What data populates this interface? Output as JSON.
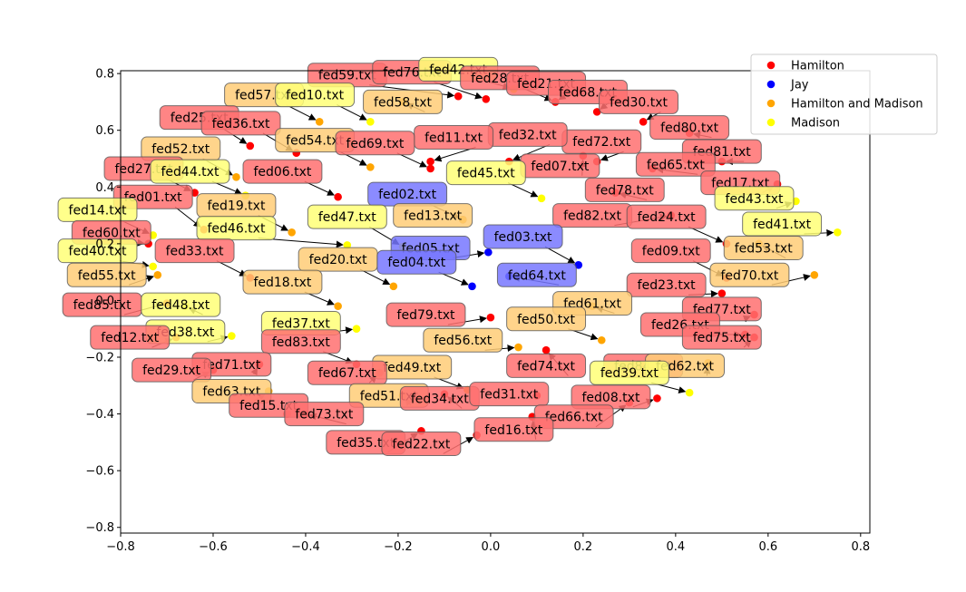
{
  "chart_data": {
    "type": "scatter",
    "title": "",
    "xlabel": "",
    "ylabel": "",
    "xlim": [
      -0.8,
      0.82
    ],
    "ylim": [
      -0.82,
      0.81
    ],
    "xticks": [
      -0.8,
      -0.6,
      -0.4,
      -0.2,
      0.0,
      0.2,
      0.4,
      0.6,
      0.8
    ],
    "yticks": [
      -0.8,
      -0.6,
      -0.4,
      -0.2,
      0.0,
      0.2,
      0.4,
      0.6,
      0.8
    ],
    "xtick_labels": [
      "−0.8",
      "−0.6",
      "−0.4",
      "−0.2",
      "0.0",
      "0.2",
      "0.4",
      "0.6",
      "0.8"
    ],
    "ytick_labels": [
      "−0.8",
      "−0.6",
      "−0.4",
      "−0.2",
      "0.0",
      "0.2",
      "0.4",
      "0.6",
      "0.8"
    ],
    "grid": false,
    "legend_position": "top-right",
    "legend": [
      {
        "name": "Hamilton",
        "color": "#ff0000"
      },
      {
        "name": "Jay",
        "color": "#0000ff"
      },
      {
        "name": "Hamilton and Madison",
        "color": "#ffa500"
      },
      {
        "name": "Madison",
        "color": "#ffff00"
      }
    ],
    "group_colors": {
      "Hamilton": "#ff0000",
      "Jay": "#0000ff",
      "Hamilton and Madison": "#ffa500",
      "Madison": "#ffff00"
    },
    "group_label_box_colors": {
      "Hamilton": "#ff7070",
      "Jay": "#7777ff",
      "Hamilton and Madison": "#ffcc77",
      "Madison": "#ffff77"
    },
    "points": [
      {
        "label": "fed59.txt",
        "group": "Hamilton",
        "x": -0.07,
        "y": 0.72,
        "lx": -0.31,
        "ly": 0.795
      },
      {
        "label": "fed76.txt",
        "group": "Hamilton",
        "x": -0.01,
        "y": 0.71,
        "lx": -0.17,
        "ly": 0.805
      },
      {
        "label": "fed42.txt",
        "group": "Madison",
        "x": 0.05,
        "y": 0.745,
        "lx": -0.07,
        "ly": 0.815
      },
      {
        "label": "fed28.txt",
        "group": "Hamilton",
        "x": 0.14,
        "y": 0.7,
        "lx": 0.02,
        "ly": 0.785
      },
      {
        "label": "fed21.txt",
        "group": "Hamilton",
        "x": 0.14,
        "y": 0.7,
        "lx": 0.12,
        "ly": 0.765
      },
      {
        "label": "fed68.txt",
        "group": "Hamilton",
        "x": 0.23,
        "y": 0.665,
        "lx": 0.21,
        "ly": 0.735
      },
      {
        "label": "fed30.txt",
        "group": "Hamilton",
        "x": 0.33,
        "y": 0.63,
        "lx": 0.32,
        "ly": 0.7
      },
      {
        "label": "fed80.txt",
        "group": "Hamilton",
        "x": 0.43,
        "y": 0.59,
        "lx": 0.43,
        "ly": 0.61
      },
      {
        "label": "fed81.txt",
        "group": "Hamilton",
        "x": 0.5,
        "y": 0.49,
        "lx": 0.5,
        "ly": 0.525
      },
      {
        "label": "fed65.txt",
        "group": "Hamilton",
        "x": 0.35,
        "y": 0.465,
        "lx": 0.4,
        "ly": 0.48
      },
      {
        "label": "fed17.txt",
        "group": "Hamilton",
        "x": 0.62,
        "y": 0.41,
        "lx": 0.54,
        "ly": 0.415
      },
      {
        "label": "fed72.txt",
        "group": "Hamilton",
        "x": 0.23,
        "y": 0.49,
        "lx": 0.24,
        "ly": 0.56
      },
      {
        "label": "fed32.txt",
        "group": "Hamilton",
        "x": 0.04,
        "y": 0.49,
        "lx": 0.08,
        "ly": 0.585
      },
      {
        "label": "fed07.txt",
        "group": "Hamilton",
        "x": 0.2,
        "y": 0.51,
        "lx": 0.15,
        "ly": 0.475
      },
      {
        "label": "fed11.txt",
        "group": "Hamilton",
        "x": -0.13,
        "y": 0.49,
        "lx": -0.08,
        "ly": 0.575
      },
      {
        "label": "fed58.txt",
        "group": "Hamilton and Madison",
        "x": -0.19,
        "y": 0.7,
        "lx": -0.19,
        "ly": 0.7
      },
      {
        "label": "fed57.txt",
        "group": "Hamilton and Madison",
        "x": -0.37,
        "y": 0.63,
        "lx": -0.49,
        "ly": 0.725
      },
      {
        "label": "fed10.txt",
        "group": "Madison",
        "x": -0.26,
        "y": 0.63,
        "lx": -0.38,
        "ly": 0.725
      },
      {
        "label": "fed25.txt",
        "group": "Hamilton",
        "x": -0.52,
        "y": 0.545,
        "lx": -0.63,
        "ly": 0.645
      },
      {
        "label": "fed36.txt",
        "group": "Hamilton",
        "x": -0.42,
        "y": 0.52,
        "lx": -0.54,
        "ly": 0.625
      },
      {
        "label": "fed54.txt",
        "group": "Hamilton and Madison",
        "x": -0.26,
        "y": 0.47,
        "lx": -0.38,
        "ly": 0.565
      },
      {
        "label": "fed69.txt",
        "group": "Hamilton",
        "x": -0.13,
        "y": 0.465,
        "lx": -0.25,
        "ly": 0.555
      },
      {
        "label": "fed52.txt",
        "group": "Hamilton and Madison",
        "x": -0.55,
        "y": 0.435,
        "lx": -0.67,
        "ly": 0.535
      },
      {
        "label": "fed27.txt",
        "group": "Hamilton",
        "x": -0.64,
        "y": 0.38,
        "lx": -0.75,
        "ly": 0.465
      },
      {
        "label": "fed44.txt",
        "group": "Madison",
        "x": -0.53,
        "y": 0.37,
        "lx": -0.65,
        "ly": 0.455
      },
      {
        "label": "fed06.txt",
        "group": "Hamilton",
        "x": -0.33,
        "y": 0.365,
        "lx": -0.45,
        "ly": 0.455
      },
      {
        "label": "fed45.txt",
        "group": "Madison",
        "x": 0.11,
        "y": 0.36,
        "lx": -0.01,
        "ly": 0.45
      },
      {
        "label": "fed78.txt",
        "group": "Hamilton",
        "x": 0.27,
        "y": 0.38,
        "lx": 0.29,
        "ly": 0.39
      },
      {
        "label": "fed43.txt",
        "group": "Madison",
        "x": 0.66,
        "y": 0.35,
        "lx": 0.57,
        "ly": 0.36
      },
      {
        "label": "fed01.txt",
        "group": "Hamilton",
        "x": -0.62,
        "y": 0.25,
        "lx": -0.73,
        "ly": 0.365
      },
      {
        "label": "fed19.txt",
        "group": "Hamilton and Madison",
        "x": -0.43,
        "y": 0.24,
        "lx": -0.55,
        "ly": 0.335
      },
      {
        "label": "fed02.txt",
        "group": "Jay",
        "x": -0.06,
        "y": 0.285,
        "lx": -0.18,
        "ly": 0.375
      },
      {
        "label": "fed14.txt",
        "group": "Madison",
        "x": -0.73,
        "y": 0.23,
        "lx": -0.85,
        "ly": 0.32
      },
      {
        "label": "fed13.txt",
        "group": "Hamilton and Madison",
        "x": -0.06,
        "y": 0.285,
        "lx": -0.125,
        "ly": 0.3
      },
      {
        "label": "fed47.txt",
        "group": "Madison",
        "x": -0.19,
        "y": 0.19,
        "lx": -0.31,
        "ly": 0.295
      },
      {
        "label": "fed82.txt",
        "group": "Hamilton",
        "x": 0.39,
        "y": 0.3,
        "lx": 0.22,
        "ly": 0.3
      },
      {
        "label": "fed24.txt",
        "group": "Hamilton",
        "x": 0.51,
        "y": 0.2,
        "lx": 0.38,
        "ly": 0.295
      },
      {
        "label": "fed41.txt",
        "group": "Madison",
        "x": 0.75,
        "y": 0.24,
        "lx": 0.63,
        "ly": 0.27
      },
      {
        "label": "fed60.txt",
        "group": "Hamilton",
        "x": -0.74,
        "y": 0.2,
        "lx": -0.82,
        "ly": 0.24
      },
      {
        "label": "fed46.txt",
        "group": "Madison",
        "x": -0.31,
        "y": 0.195,
        "lx": -0.55,
        "ly": 0.255
      },
      {
        "label": "fed03.txt",
        "group": "Jay",
        "x": 0.19,
        "y": 0.125,
        "lx": 0.07,
        "ly": 0.225
      },
      {
        "label": "fed05.txt",
        "group": "Jay",
        "x": -0.005,
        "y": 0.17,
        "lx": -0.13,
        "ly": 0.185
      },
      {
        "label": "fed53.txt",
        "group": "Hamilton and Madison",
        "x": 0.58,
        "y": 0.2,
        "lx": 0.59,
        "ly": 0.185
      },
      {
        "label": "fed40.txt",
        "group": "Madison",
        "x": -0.73,
        "y": 0.12,
        "lx": -0.85,
        "ly": 0.175
      },
      {
        "label": "fed33.txt",
        "group": "Hamilton",
        "x": -0.52,
        "y": 0.08,
        "lx": -0.64,
        "ly": 0.175
      },
      {
        "label": "fed09.txt",
        "group": "Hamilton",
        "x": 0.51,
        "y": 0.08,
        "lx": 0.39,
        "ly": 0.175
      },
      {
        "label": "fed20.txt",
        "group": "Hamilton and Madison",
        "x": -0.21,
        "y": 0.05,
        "lx": -0.33,
        "ly": 0.145
      },
      {
        "label": "fed04.txt",
        "group": "Jay",
        "x": -0.04,
        "y": 0.05,
        "lx": -0.16,
        "ly": 0.135
      },
      {
        "label": "fed64.txt",
        "group": "Jay",
        "x": 0.04,
        "y": 0.085,
        "lx": 0.1,
        "ly": 0.09
      },
      {
        "label": "fed70.txt",
        "group": "Hamilton and Madison",
        "x": 0.7,
        "y": 0.09,
        "lx": 0.56,
        "ly": 0.09
      },
      {
        "label": "fed55.txt",
        "group": "Hamilton and Madison",
        "x": -0.72,
        "y": 0.09,
        "lx": -0.83,
        "ly": 0.09
      },
      {
        "label": "fed18.txt",
        "group": "Hamilton and Madison",
        "x": -0.33,
        "y": -0.02,
        "lx": -0.45,
        "ly": 0.065
      },
      {
        "label": "fed23.txt",
        "group": "Hamilton",
        "x": 0.5,
        "y": 0.025,
        "lx": 0.38,
        "ly": 0.055
      },
      {
        "label": "fed85.txt",
        "group": "Hamilton",
        "x": -0.7,
        "y": -0.01,
        "lx": -0.84,
        "ly": -0.015
      },
      {
        "label": "fed48.txt",
        "group": "Madison",
        "x": -0.66,
        "y": -0.02,
        "lx": -0.67,
        "ly": -0.015
      },
      {
        "label": "fed61.txt",
        "group": "Hamilton and Madison",
        "x": 0.22,
        "y": -0.02,
        "lx": 0.22,
        "ly": -0.01
      },
      {
        "label": "fed77.txt",
        "group": "Hamilton",
        "x": 0.57,
        "y": -0.05,
        "lx": 0.5,
        "ly": -0.03
      },
      {
        "label": "fed79.txt",
        "group": "Hamilton",
        "x": 0.0,
        "y": -0.06,
        "lx": -0.14,
        "ly": -0.05
      },
      {
        "label": "fed50.txt",
        "group": "Hamilton and Madison",
        "x": 0.24,
        "y": -0.14,
        "lx": 0.12,
        "ly": -0.065
      },
      {
        "label": "fed37.txt",
        "group": "Madison",
        "x": -0.29,
        "y": -0.1,
        "lx": -0.41,
        "ly": -0.08
      },
      {
        "label": "fed26.txt",
        "group": "Hamilton",
        "x": 0.55,
        "y": -0.12,
        "lx": 0.41,
        "ly": -0.085
      },
      {
        "label": "fed38.txt",
        "group": "Madison",
        "x": -0.56,
        "y": -0.125,
        "lx": -0.66,
        "ly": -0.11
      },
      {
        "label": "fed12.txt",
        "group": "Hamilton",
        "x": -0.68,
        "y": -0.13,
        "lx": -0.78,
        "ly": -0.13
      },
      {
        "label": "fed75.txt",
        "group": "Hamilton",
        "x": 0.57,
        "y": -0.13,
        "lx": 0.5,
        "ly": -0.13
      },
      {
        "label": "fed56.txt",
        "group": "Hamilton and Madison",
        "x": 0.06,
        "y": -0.165,
        "lx": -0.06,
        "ly": -0.14
      },
      {
        "label": "fed83.txt",
        "group": "Hamilton",
        "x": -0.29,
        "y": -0.225,
        "lx": -0.41,
        "ly": -0.145
      },
      {
        "label": "fed74.txt",
        "group": "Hamilton",
        "x": 0.12,
        "y": -0.175,
        "lx": 0.12,
        "ly": -0.23
      },
      {
        "label": "fed84.txt",
        "group": "Hamilton",
        "x": 0.33,
        "y": -0.23,
        "lx": 0.33,
        "ly": -0.23
      },
      {
        "label": "fed62.txt",
        "group": "Hamilton and Madison",
        "x": 0.47,
        "y": -0.22,
        "lx": 0.42,
        "ly": -0.23
      },
      {
        "label": "fed71.txt",
        "group": "Hamilton",
        "x": -0.5,
        "y": -0.225,
        "lx": -0.56,
        "ly": -0.225
      },
      {
        "label": "fed29.txt",
        "group": "Hamilton",
        "x": -0.6,
        "y": -0.245,
        "lx": -0.69,
        "ly": -0.245
      },
      {
        "label": "fed49.txt",
        "group": "Hamilton and Madison",
        "x": -0.05,
        "y": -0.315,
        "lx": -0.17,
        "ly": -0.235
      },
      {
        "label": "fed67.txt",
        "group": "Hamilton",
        "x": -0.24,
        "y": -0.255,
        "lx": -0.31,
        "ly": -0.255
      },
      {
        "label": "fed39.txt",
        "group": "Madison",
        "x": 0.43,
        "y": -0.325,
        "lx": 0.3,
        "ly": -0.255
      },
      {
        "label": "fed63.txt",
        "group": "Hamilton and Madison",
        "x": -0.48,
        "y": -0.32,
        "lx": -0.56,
        "ly": -0.32
      },
      {
        "label": "fed51.txt",
        "group": "Hamilton and Madison",
        "x": -0.19,
        "y": -0.335,
        "lx": -0.22,
        "ly": -0.335
      },
      {
        "label": "fed34.txt",
        "group": "Hamilton",
        "x": -0.1,
        "y": -0.33,
        "lx": -0.11,
        "ly": -0.345
      },
      {
        "label": "fed31.txt",
        "group": "Hamilton",
        "x": 0.1,
        "y": -0.335,
        "lx": 0.04,
        "ly": -0.33
      },
      {
        "label": "fed08.txt",
        "group": "Hamilton",
        "x": 0.36,
        "y": -0.345,
        "lx": 0.26,
        "ly": -0.34
      },
      {
        "label": "fed15.txt",
        "group": "Hamilton",
        "x": -0.44,
        "y": -0.4,
        "lx": -0.48,
        "ly": -0.37
      },
      {
        "label": "fed73.txt",
        "group": "Hamilton",
        "x": -0.4,
        "y": -0.4,
        "lx": -0.36,
        "ly": -0.4
      },
      {
        "label": "fed66.txt",
        "group": "Hamilton",
        "x": 0.3,
        "y": -0.36,
        "lx": 0.18,
        "ly": -0.41
      },
      {
        "label": "fed16.txt",
        "group": "Hamilton",
        "x": 0.09,
        "y": -0.41,
        "lx": 0.05,
        "ly": -0.455
      },
      {
        "label": "fed35.txt",
        "group": "Hamilton",
        "x": -0.15,
        "y": -0.46,
        "lx": -0.27,
        "ly": -0.5
      },
      {
        "label": "fed22.txt",
        "group": "Hamilton",
        "x": -0.03,
        "y": -0.475,
        "lx": -0.15,
        "ly": -0.505
      }
    ]
  }
}
